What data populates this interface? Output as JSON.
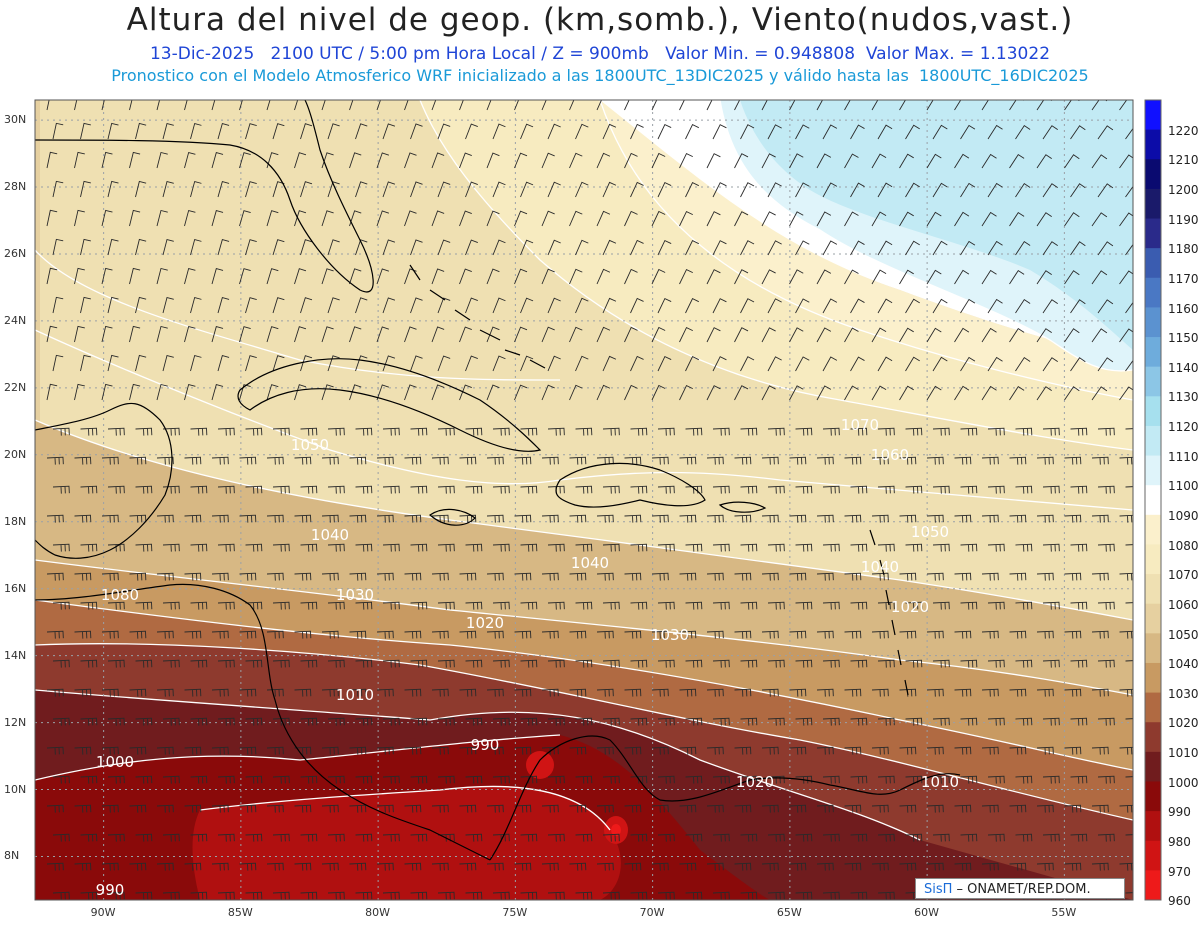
{
  "header": {
    "title": "Altura del nivel de geop. (km,somb.), Viento(nudos,vast.)",
    "date": "13-Dic-2025",
    "time_level": "2100 UTC / 5:00 pm Hora Local / Z = 900mb",
    "min_value": "Valor Min. = 0.948808",
    "max_value": "Valor Max. = 1.13022",
    "model_line": "Pronostico con el Modelo Atmosferico WRF inicializado a las 1800UTC_13DIC2025 y válido hasta las  1800UTC_16DIC2025"
  },
  "colors": {
    "title": "#222222",
    "subtitle_blue": "#1f45d6",
    "subtitle_cyan": "#1a9ad8",
    "contour": "#ffffff",
    "coastline": "#000000",
    "barb": "#2a2a2a"
  },
  "map": {
    "projection": "lat-lon",
    "lon_range": [
      -92.5,
      -52.5
    ],
    "lat_range": [
      6.7,
      30.6
    ],
    "lat_ticks": [
      "30N",
      "28N",
      "26N",
      "24N",
      "22N",
      "20N",
      "18N",
      "16N",
      "14N",
      "12N",
      "10N",
      "8N"
    ],
    "lon_ticks": [
      "90W",
      "85W",
      "80W",
      "75W",
      "70W",
      "65W",
      "60W",
      "55W"
    ],
    "grid": "dotted",
    "contour_labels": [
      "1050",
      "1040",
      "1030",
      "1020",
      "1010",
      "1000",
      "990",
      "1040",
      "1030",
      "1020",
      "1010",
      "1020",
      "1040",
      "1050",
      "1060",
      "1070",
      "1080",
      "990"
    ],
    "credit_brand": "SisΠ",
    "credit_text": " – ONAMET/REP.DOM."
  },
  "colorbar": {
    "levels": [
      "1220",
      "1210",
      "1200",
      "1190",
      "1180",
      "1170",
      "1160",
      "1150",
      "1140",
      "1130",
      "1120",
      "1110",
      "1100",
      "1090",
      "1080",
      "1070",
      "1060",
      "1050",
      "1040",
      "1030",
      "1020",
      "1010",
      "1000",
      "990",
      "980",
      "970",
      "960"
    ],
    "colors": [
      "#1010ff",
      "#0c0ca8",
      "#0a0a70",
      "#1a1a6a",
      "#2a2a8a",
      "#3a5cb0",
      "#4a78c4",
      "#5b92d0",
      "#6eacdc",
      "#8cc6e6",
      "#a6e0ee",
      "#c2eaf4",
      "#dff4fa",
      "#ffffff",
      "#fbf0cc",
      "#f7ebc0",
      "#efe0b2",
      "#e6d0a0",
      "#d7b884",
      "#c89a62",
      "#b06a42",
      "#8e3a2e",
      "#701c1e",
      "#8a0a0a",
      "#b01010",
      "#d01414",
      "#ee1a1a"
    ]
  }
}
